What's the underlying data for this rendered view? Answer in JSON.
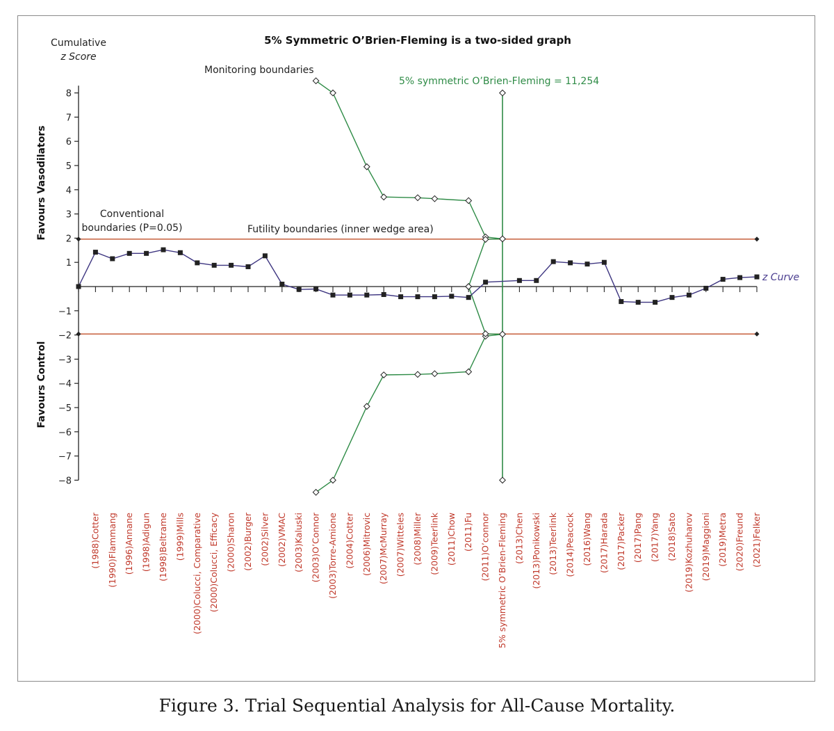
{
  "caption": "Figure 3. Trial Sequential Analysis for All-Cause Mortality.",
  "colors": {
    "z_curve": "#3d3580",
    "monitoring": "#2e8b46",
    "conventional": "#c0502a",
    "axis": "#222222",
    "category_text": "#c0392b"
  },
  "chart_data": {
    "type": "line",
    "title": "5% Symmetric O’Brien-Fleming is a two-sided graph",
    "ylabel_line1": "Cumulative",
    "ylabel_line2": "z Score",
    "ylim": [
      -8,
      8
    ],
    "yticks": [
      8,
      7,
      6,
      5,
      4,
      3,
      2,
      1,
      -1,
      -2,
      -3,
      -4,
      -5,
      -6,
      -7,
      -8
    ],
    "ytick_labels": [
      "8",
      "7",
      "6",
      "5",
      "4",
      "3",
      "2",
      "1",
      "−1",
      "−2",
      "−3",
      "−4",
      "−5",
      "−6",
      "−7",
      "−8"
    ],
    "side_labels": {
      "upper": "Favours Vasodilators",
      "lower": "Favours Control"
    },
    "annotations": {
      "monitoring": "Monitoring boundaries",
      "obf": "5% symmetric O’Brien-Fleming = 11,254",
      "conventional_line1": "Conventional",
      "conventional_line2": "boundaries (P=0.05)",
      "futility": "Futility boundaries (inner wedge area)",
      "z_curve": "z Curve"
    },
    "categories": [
      "(1988)Cotter",
      "(1990)Flammang",
      "(1996)Annane",
      "(1998)Adigun",
      "(1998)Beltrame",
      "(1999)Mills",
      "(2000)Colucci, Comparative",
      "(2000)Colucci, Efficacy",
      "(2000)Sharon",
      "(2002)Burger",
      "(2002)Silver",
      "(2002)VMAC",
      "(2003)Kaluski",
      "(2003)O’Connor",
      "(2003)Torre-Amione",
      "(2004)Cotter",
      "(2006)Mitrovic",
      "(2007)McMurray",
      "(2007)Witteles",
      "(2008)Miller",
      "(2009)Teerlink",
      "(2011)Chow",
      "(2011)Fu",
      "(2011)O’connor",
      "5% symmetric O’Brien-Fleming",
      "(2013)Chen",
      "(2013)Ponikowski",
      "(2013)Teerlink",
      "(2014)Peacock",
      "(2016)Wang",
      "(2017)Harada",
      "(2017)Packer",
      "(2017)Pang",
      "(2017)Yang",
      "(2018)Sato",
      "(2019)Kozhuharov",
      "(2019)Maggioni",
      "(2019)Metra",
      "(2020)Freund",
      "(2021)Felker"
    ],
    "z_curve": [
      {
        "i": 0,
        "z": 0.0
      },
      {
        "i": 1,
        "z": 1.42
      },
      {
        "i": 2,
        "z": 1.15
      },
      {
        "i": 3,
        "z": 1.37
      },
      {
        "i": 4,
        "z": 1.37
      },
      {
        "i": 5,
        "z": 1.52
      },
      {
        "i": 6,
        "z": 1.4
      },
      {
        "i": 7,
        "z": 0.98
      },
      {
        "i": 8,
        "z": 0.88
      },
      {
        "i": 9,
        "z": 0.88
      },
      {
        "i": 10,
        "z": 0.82
      },
      {
        "i": 11,
        "z": 1.27
      },
      {
        "i": 12,
        "z": 0.1
      },
      {
        "i": 13,
        "z": -0.12
      },
      {
        "i": 14,
        "z": -0.1
      },
      {
        "i": 15,
        "z": -0.35
      },
      {
        "i": 16,
        "z": -0.35
      },
      {
        "i": 17,
        "z": -0.35
      },
      {
        "i": 18,
        "z": -0.33
      },
      {
        "i": 19,
        "z": -0.42
      },
      {
        "i": 20,
        "z": -0.42
      },
      {
        "i": 21,
        "z": -0.42
      },
      {
        "i": 22,
        "z": -0.4
      },
      {
        "i": 23,
        "z": -0.45
      },
      {
        "i": 24,
        "z": 0.18
      },
      {
        "i": 26,
        "z": 0.25
      },
      {
        "i": 27,
        "z": 0.25
      },
      {
        "i": 28,
        "z": 1.03
      },
      {
        "i": 29,
        "z": 0.98
      },
      {
        "i": 30,
        "z": 0.93
      },
      {
        "i": 31,
        "z": 1.0
      },
      {
        "i": 32,
        "z": -0.62
      },
      {
        "i": 33,
        "z": -0.65
      },
      {
        "i": 34,
        "z": -0.65
      },
      {
        "i": 35,
        "z": -0.45
      },
      {
        "i": 36,
        "z": -0.35
      },
      {
        "i": 37,
        "z": -0.07
      },
      {
        "i": 38,
        "z": 0.3
      },
      {
        "i": 39,
        "z": 0.37
      },
      {
        "i": 40,
        "z": 0.4
      }
    ],
    "monitoring_upper": [
      {
        "i": 14,
        "z": 8.5
      },
      {
        "i": 15,
        "z": 8.0
      },
      {
        "i": 17,
        "z": 4.95
      },
      {
        "i": 18,
        "z": 3.7
      },
      {
        "i": 20,
        "z": 3.67
      },
      {
        "i": 21,
        "z": 3.63
      },
      {
        "i": 23,
        "z": 3.55
      },
      {
        "i": 24,
        "z": 2.05
      },
      {
        "i": 25,
        "z": 1.97
      }
    ],
    "monitoring_lower": [
      {
        "i": 14,
        "z": -8.5
      },
      {
        "i": 15,
        "z": -8.0
      },
      {
        "i": 17,
        "z": -4.95
      },
      {
        "i": 18,
        "z": -3.65
      },
      {
        "i": 20,
        "z": -3.63
      },
      {
        "i": 21,
        "z": -3.6
      },
      {
        "i": 23,
        "z": -3.52
      },
      {
        "i": 24,
        "z": -2.05
      },
      {
        "i": 25,
        "z": -1.97
      }
    ],
    "futility_upper": [
      {
        "i": 23,
        "z": 0.0
      },
      {
        "i": 24,
        "z": 1.95
      },
      {
        "i": 25,
        "z": 1.97
      }
    ],
    "futility_lower": [
      {
        "i": 23,
        "z": 0.0
      },
      {
        "i": 24,
        "z": -1.95
      },
      {
        "i": 25,
        "z": -1.97
      }
    ],
    "obf_vertical": {
      "i": 25,
      "z_top": 8,
      "z_bottom": -8
    },
    "conventional_boundary": 1.96
  }
}
